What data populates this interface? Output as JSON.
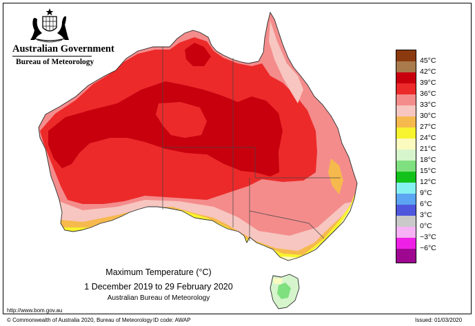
{
  "header": {
    "org_title": "Australian Government",
    "org_subtitle": "Bureau of Meteorology",
    "crest_icon": "coat-of-arms-icon"
  },
  "caption": {
    "line1": "Maximum Temperature (°C)",
    "line2": "1 December 2019 to 29 February 2020",
    "line3": "Australian Bureau of Meteorology"
  },
  "legend": {
    "items": [
      {
        "label": "45°C",
        "color": "#8b3a0f"
      },
      {
        "label": "42°C",
        "color": "#a97a4c"
      },
      {
        "label": "39°C",
        "color": "#c8000e"
      },
      {
        "label": "36°C",
        "color": "#ec2a2a"
      },
      {
        "label": "33°C",
        "color": "#f48c8c"
      },
      {
        "label": "30°C",
        "color": "#f7c6c0"
      },
      {
        "label": "27°C",
        "color": "#f6b94e"
      },
      {
        "label": "24°C",
        "color": "#f7f32e"
      },
      {
        "label": "21°C",
        "color": "#fbfbc0"
      },
      {
        "label": "18°C",
        "color": "#d6f5cc"
      },
      {
        "label": "15°C",
        "color": "#7fe07f"
      },
      {
        "label": "12°C",
        "color": "#12c21a"
      },
      {
        "label": "9°C",
        "color": "#86f1f1"
      },
      {
        "label": "6°C",
        "color": "#5ba5f3"
      },
      {
        "label": "3°C",
        "color": "#4f57dd"
      },
      {
        "label": "0°C",
        "color": "#c9c9c9"
      },
      {
        "label": "−3°C",
        "color": "#f6b2f4"
      },
      {
        "label": "−6°C",
        "color": "#ee20e6"
      },
      {
        "label": "",
        "color": "#9e078f"
      }
    ]
  },
  "footer": {
    "url": "http://www.bom.gov.au",
    "copyright": "© Commonwealth of Australia 2020, Bureau of Meteorology",
    "id_code": "ID code: AWAP",
    "issued": "Issued: 01/03/2020"
  }
}
